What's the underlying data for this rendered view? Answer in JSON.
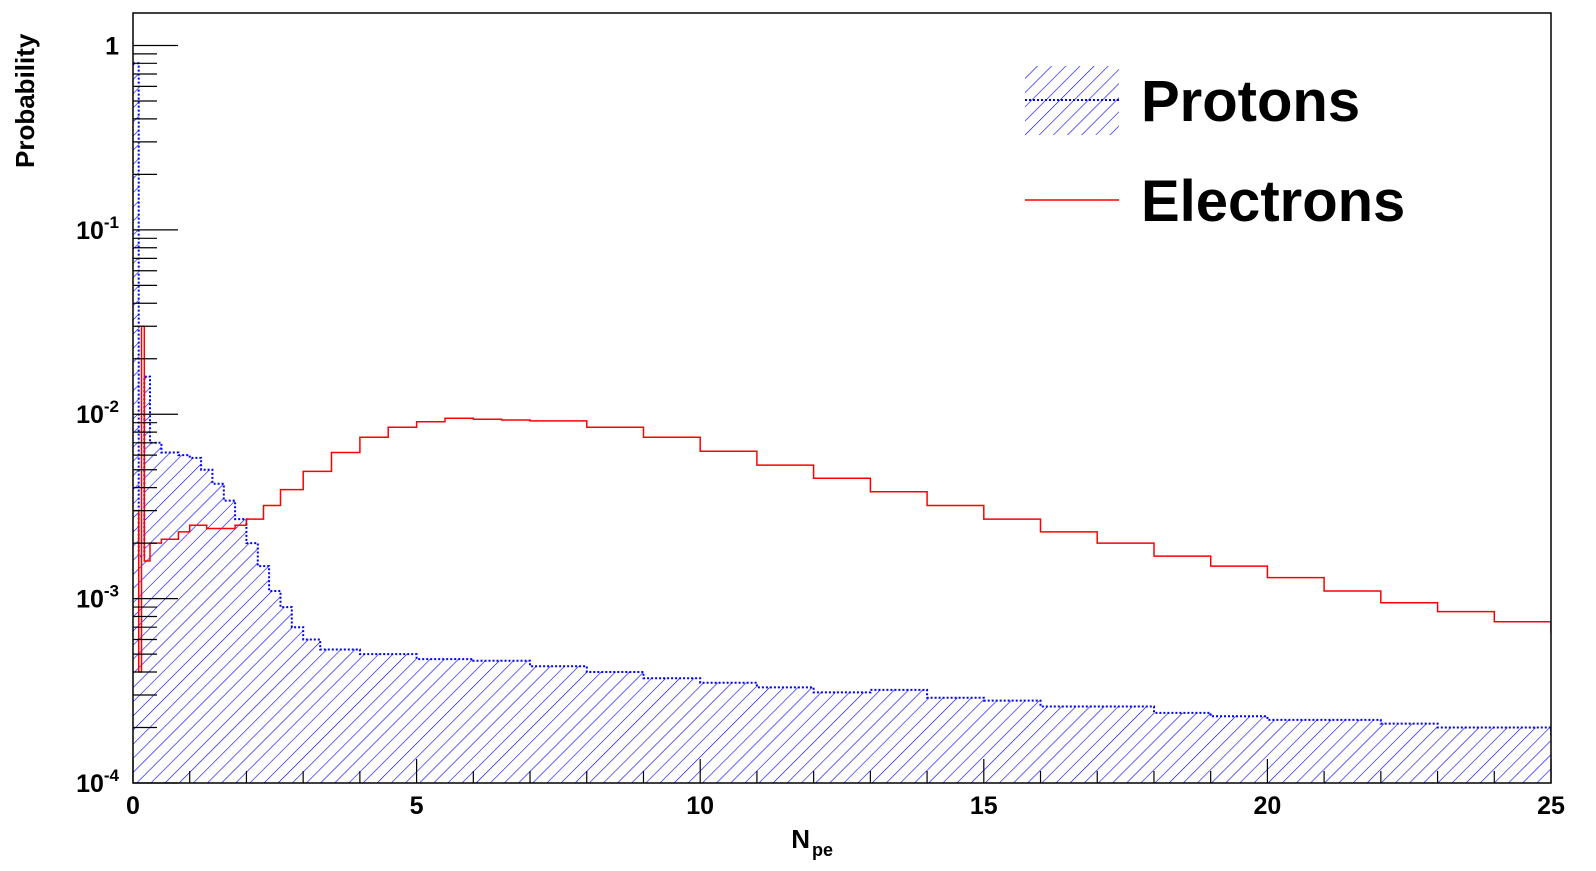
{
  "chart_data": {
    "type": "line",
    "title": "",
    "xlabel": {
      "main": "N",
      "sub": "pe"
    },
    "ylabel": "Probability",
    "xlim": [
      0,
      25
    ],
    "ylim": [
      0.0001,
      1.5
    ],
    "y_scale": "log",
    "x_ticks": [
      "0",
      "5",
      "10",
      "15",
      "20",
      "25"
    ],
    "y_ticks": [
      {
        "value": 1,
        "base": "1",
        "exp": ""
      },
      {
        "value": 0.1,
        "base": "10",
        "exp": "-1"
      },
      {
        "value": 0.01,
        "base": "10",
        "exp": "-2"
      },
      {
        "value": 0.001,
        "base": "10",
        "exp": "-3"
      },
      {
        "value": 0.0001,
        "base": "10",
        "exp": "-4"
      }
    ],
    "legend_position": "top-right",
    "series": [
      {
        "name": "Protons",
        "color": "#0000ff",
        "fill": "hatched",
        "style": "histogram",
        "points": [
          [
            0.0,
            0.8
          ],
          [
            0.1,
            0.0017
          ],
          [
            0.2,
            0.016
          ],
          [
            0.3,
            0.007
          ],
          [
            0.5,
            0.0062
          ],
          [
            0.8,
            0.006
          ],
          [
            1.0,
            0.0058
          ],
          [
            1.2,
            0.005
          ],
          [
            1.4,
            0.0042
          ],
          [
            1.6,
            0.0034
          ],
          [
            1.8,
            0.0027
          ],
          [
            2.0,
            0.002
          ],
          [
            2.2,
            0.0015
          ],
          [
            2.4,
            0.0011
          ],
          [
            2.6,
            0.0009
          ],
          [
            2.8,
            0.0007
          ],
          [
            3.0,
            0.0006
          ],
          [
            3.3,
            0.00053
          ],
          [
            4.0,
            0.0005
          ],
          [
            5.0,
            0.00047
          ],
          [
            6.0,
            0.00046
          ],
          [
            7.0,
            0.00043
          ],
          [
            8.0,
            0.0004
          ],
          [
            9.0,
            0.00037
          ],
          [
            10.0,
            0.00035
          ],
          [
            11.0,
            0.00033
          ],
          [
            12.0,
            0.00031
          ],
          [
            13.0,
            0.00032
          ],
          [
            14.0,
            0.00029
          ],
          [
            15.0,
            0.00028
          ],
          [
            16.0,
            0.00026
          ],
          [
            17.0,
            0.00026
          ],
          [
            18.0,
            0.00024
          ],
          [
            19.0,
            0.00023
          ],
          [
            20.0,
            0.00022
          ],
          [
            21.0,
            0.00022
          ],
          [
            22.0,
            0.00021
          ],
          [
            23.0,
            0.0002
          ],
          [
            24.0,
            0.0002
          ],
          [
            25.0,
            0.00018
          ]
        ]
      },
      {
        "name": "Electrons",
        "color": "#ff0000",
        "fill": "none",
        "style": "histogram",
        "points": [
          [
            0.0,
            0.003
          ],
          [
            0.1,
            0.0004
          ],
          [
            0.15,
            0.03
          ],
          [
            0.2,
            0.0016
          ],
          [
            0.3,
            0.002
          ],
          [
            0.5,
            0.0021
          ],
          [
            0.8,
            0.0023
          ],
          [
            1.0,
            0.0025
          ],
          [
            1.3,
            0.0024
          ],
          [
            1.6,
            0.0024
          ],
          [
            1.8,
            0.0025
          ],
          [
            2.0,
            0.0027
          ],
          [
            2.3,
            0.0032
          ],
          [
            2.6,
            0.0039
          ],
          [
            3.0,
            0.0049
          ],
          [
            3.5,
            0.0062
          ],
          [
            4.0,
            0.0075
          ],
          [
            4.5,
            0.0085
          ],
          [
            5.0,
            0.0091
          ],
          [
            5.5,
            0.0095
          ],
          [
            6.0,
            0.0094
          ],
          [
            6.5,
            0.0093
          ],
          [
            7.0,
            0.0092
          ],
          [
            8.0,
            0.0085
          ],
          [
            9.0,
            0.0075
          ],
          [
            10.0,
            0.0063
          ],
          [
            11.0,
            0.0053
          ],
          [
            12.0,
            0.0045
          ],
          [
            13.0,
            0.0038
          ],
          [
            14.0,
            0.0032
          ],
          [
            15.0,
            0.0027
          ],
          [
            16.0,
            0.0023
          ],
          [
            17.0,
            0.002
          ],
          [
            18.0,
            0.0017
          ],
          [
            19.0,
            0.0015
          ],
          [
            20.0,
            0.0013
          ],
          [
            21.0,
            0.0011
          ],
          [
            22.0,
            0.00095
          ],
          [
            23.0,
            0.00085
          ],
          [
            24.0,
            0.00075
          ],
          [
            25.0,
            0.00065
          ]
        ]
      }
    ]
  }
}
